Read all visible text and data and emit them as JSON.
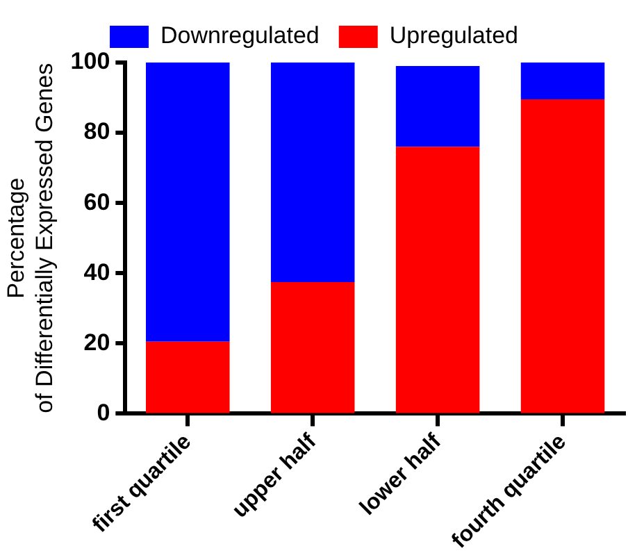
{
  "chart_data": {
    "type": "bar",
    "ylabel": "Percentage\nof Differentially Expressed Genes",
    "categories": [
      "first quartile",
      "upper half",
      "lower half",
      "fourth quartile"
    ],
    "series": [
      {
        "name": "Upregulated",
        "color": "#ff0000",
        "values": [
          20.5,
          37.5,
          76,
          89.5
        ]
      },
      {
        "name": "Downregulated",
        "color": "#0000ff",
        "values": [
          79.5,
          62.5,
          23,
          10.5
        ]
      }
    ],
    "stacked": true,
    "ylim": [
      0,
      100
    ],
    "yticks": [
      0,
      20,
      40,
      60,
      80,
      100
    ],
    "legend": "top"
  }
}
